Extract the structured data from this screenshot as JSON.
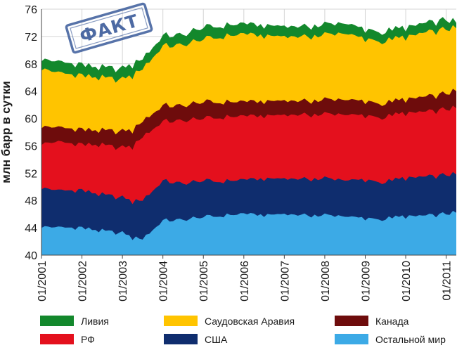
{
  "chart_data": {
    "type": "area",
    "stacked": true,
    "ylabel": "млн барр в сутки",
    "xlabel": "",
    "ylim": [
      40,
      76
    ],
    "yticks": [
      40,
      44,
      48,
      52,
      56,
      60,
      64,
      68,
      72,
      76
    ],
    "grid": true,
    "x_tick_labels": [
      "01/2001",
      "01/2002",
      "01/2003",
      "01/2004",
      "01/2005",
      "01/2006",
      "01/2007",
      "01/2008",
      "01/2009",
      "01/2010",
      "01/2011"
    ],
    "x_start": "2001-01",
    "x_end": "2011-04",
    "x_knots": [
      "2001-01",
      "2001-06",
      "2002-01",
      "2002-06",
      "2003-01",
      "2003-04",
      "2003-07",
      "2004-01",
      "2004-07",
      "2005-01",
      "2005-07",
      "2006-01",
      "2006-07",
      "2007-01",
      "2007-07",
      "2008-01",
      "2008-07",
      "2009-01",
      "2009-07",
      "2010-01",
      "2010-07",
      "2011-01",
      "2011-04"
    ],
    "series": [
      {
        "name": "Остальной мир",
        "color": "#3caae6",
        "values": [
          44.3,
          44.0,
          44.0,
          43.5,
          43.3,
          42.5,
          42.5,
          45.0,
          45.2,
          45.5,
          45.8,
          46.0,
          45.8,
          46.0,
          45.8,
          45.8,
          45.7,
          45.3,
          45.3,
          45.6,
          45.8,
          46.0,
          46.2
        ]
      },
      {
        "name": "США",
        "color": "#0f2d6e",
        "values": [
          50.0,
          49.4,
          49.5,
          48.8,
          48.5,
          47.8,
          48.2,
          50.8,
          50.5,
          50.8,
          50.8,
          51.0,
          51.1,
          51.2,
          51.1,
          51.2,
          51.0,
          50.9,
          50.7,
          51.2,
          51.5,
          51.7,
          51.8
        ]
      },
      {
        "name": "РФ",
        "color": "#e4101d",
        "values": [
          56.5,
          56.5,
          56.2,
          56.0,
          55.8,
          55.8,
          57.5,
          59.5,
          59.7,
          59.9,
          60.2,
          60.3,
          60.3,
          60.5,
          60.5,
          60.6,
          60.6,
          60.3,
          60.2,
          60.7,
          61.0,
          61.3,
          61.5
        ]
      },
      {
        "name": "Канада",
        "color": "#6e0c0c",
        "values": [
          59.0,
          58.6,
          58.4,
          58.1,
          58.2,
          58.2,
          59.8,
          61.8,
          61.9,
          62.3,
          62.4,
          62.4,
          62.4,
          62.6,
          62.5,
          62.7,
          62.8,
          62.4,
          62.2,
          62.7,
          63.2,
          63.6,
          64.0
        ]
      },
      {
        "name": "Саудовская Аравия",
        "color": "#ffc400",
        "values": [
          67.5,
          66.6,
          66.3,
          65.8,
          65.8,
          66.2,
          67.5,
          70.5,
          70.8,
          71.5,
          72.0,
          72.3,
          72.0,
          72.0,
          71.9,
          72.2,
          72.5,
          71.5,
          71.3,
          71.8,
          72.6,
          73.0,
          73.2
        ]
      },
      {
        "name": "Ливия",
        "color": "#13882c",
        "values": [
          68.9,
          68.2,
          67.9,
          67.3,
          67.4,
          67.8,
          69.0,
          72.0,
          72.3,
          73.2,
          73.6,
          73.8,
          73.5,
          73.5,
          73.4,
          73.7,
          74.0,
          72.9,
          72.7,
          73.2,
          74.0,
          74.4,
          74.0
        ]
      }
    ]
  },
  "legend": [
    {
      "label": "Ливия",
      "color": "#13882c"
    },
    {
      "label": "Саудовская Аравия",
      "color": "#ffc400"
    },
    {
      "label": "Канада",
      "color": "#6e0c0c"
    },
    {
      "label": "РФ",
      "color": "#e4101d"
    },
    {
      "label": "США",
      "color": "#0f2d6e"
    },
    {
      "label": "Остальной мир",
      "color": "#3caae6"
    }
  ],
  "stamp": {
    "text": "ФАКТ",
    "color": "#3a5a9a"
  }
}
